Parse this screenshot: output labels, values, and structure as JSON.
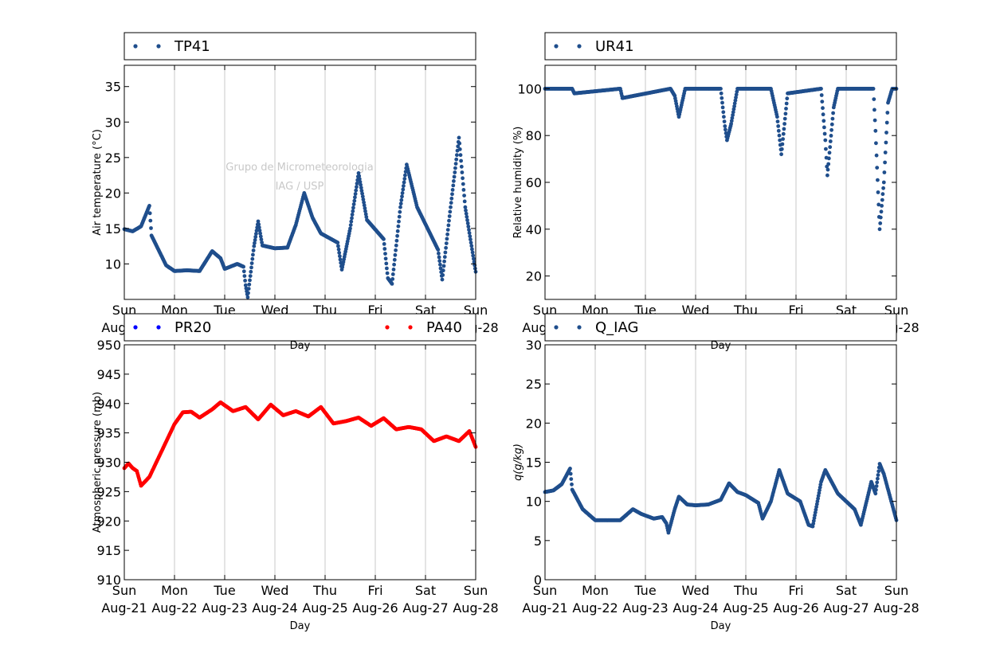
{
  "colors": {
    "series_blue": "#1f4e8c",
    "pr20": "#0000ff",
    "pa40": "#ff0000",
    "grid": "#c8c8c8"
  },
  "watermark": {
    "line1": "Grupo de Micrometeorologia",
    "line2": "IAG / USP"
  },
  "chart_data": [
    {
      "type": "scatter",
      "ylabel": "Air temperature (°C)",
      "xlabel": "Day",
      "x_axis": {
        "type": "date",
        "range": [
          "2016-08-21 00:00",
          "2016-08-28 00:00"
        ]
      },
      "ylim": [
        5,
        38
      ],
      "yticks": [
        10,
        15,
        20,
        25,
        30,
        35
      ],
      "grid": "vertical",
      "legend_position": "top",
      "series": [
        {
          "name": "TP41",
          "color": "#1f4e8c",
          "points": [
            [
              "2016-08-21 00:00",
              14.9
            ],
            [
              "2016-08-21 04:00",
              14.6
            ],
            [
              "2016-08-21 08:00",
              15.3
            ],
            [
              "2016-08-21 12:00",
              18.2
            ],
            [
              "2016-08-21 13:00",
              14.0
            ],
            [
              "2016-08-21 18:00",
              11.0
            ],
            [
              "2016-08-21 20:00",
              9.8
            ],
            [
              "2016-08-22 00:00",
              9.0
            ],
            [
              "2016-08-22 06:00",
              9.1
            ],
            [
              "2016-08-22 12:00",
              9.0
            ],
            [
              "2016-08-22 18:00",
              11.8
            ],
            [
              "2016-08-22 22:00",
              10.8
            ],
            [
              "2016-08-23 00:00",
              9.3
            ],
            [
              "2016-08-23 06:00",
              10.0
            ],
            [
              "2016-08-23 09:00",
              9.6
            ],
            [
              "2016-08-23 10:00",
              7.0
            ],
            [
              "2016-08-23 11:00",
              5.3
            ],
            [
              "2016-08-23 14:00",
              12.5
            ],
            [
              "2016-08-23 16:00",
              16.0
            ],
            [
              "2016-08-23 18:00",
              12.6
            ],
            [
              "2016-08-24 00:00",
              12.2
            ],
            [
              "2016-08-24 06:00",
              12.3
            ],
            [
              "2016-08-24 10:00",
              15.5
            ],
            [
              "2016-08-24 14:00",
              20.0
            ],
            [
              "2016-08-24 18:00",
              16.5
            ],
            [
              "2016-08-24 22:00",
              14.3
            ],
            [
              "2016-08-25 06:00",
              13.0
            ],
            [
              "2016-08-25 08:00",
              9.2
            ],
            [
              "2016-08-25 12:00",
              15.0
            ],
            [
              "2016-08-25 16:00",
              22.8
            ],
            [
              "2016-08-25 20:00",
              16.2
            ],
            [
              "2016-08-26 04:00",
              13.5
            ],
            [
              "2016-08-26 06:00",
              8.0
            ],
            [
              "2016-08-26 08:00",
              7.2
            ],
            [
              "2016-08-26 12:00",
              18.0
            ],
            [
              "2016-08-26 15:00",
              24.0
            ],
            [
              "2016-08-26 20:00",
              18.0
            ],
            [
              "2016-08-27 06:00",
              12.0
            ],
            [
              "2016-08-27 08:00",
              7.8
            ],
            [
              "2016-08-27 12:00",
              18.0
            ],
            [
              "2016-08-27 16:00",
              27.8
            ],
            [
              "2016-08-27 19:00",
              18.0
            ],
            [
              "2016-08-28 00:00",
              8.9
            ]
          ]
        }
      ]
    },
    {
      "type": "scatter",
      "ylabel": "Relative humidity (%)",
      "xlabel": "Day",
      "x_axis": {
        "type": "date",
        "range": [
          "2016-08-21 00:00",
          "2016-08-28 00:00"
        ]
      },
      "ylim": [
        10,
        110
      ],
      "yticks": [
        20,
        40,
        60,
        80,
        100
      ],
      "grid": "vertical",
      "legend_position": "top",
      "series": [
        {
          "name": "UR41",
          "color": "#1f4e8c",
          "points": [
            [
              "2016-08-21 00:00",
              100
            ],
            [
              "2016-08-21 13:00",
              100
            ],
            [
              "2016-08-21 14:00",
              98.0
            ],
            [
              "2016-08-22 12:00",
              100
            ],
            [
              "2016-08-22 13:00",
              96.0
            ],
            [
              "2016-08-23 12:00",
              100
            ],
            [
              "2016-08-23 14:00",
              97.0
            ],
            [
              "2016-08-23 16:00",
              88.0
            ],
            [
              "2016-08-23 18:00",
              96.0
            ],
            [
              "2016-08-23 19:00",
              100
            ],
            [
              "2016-08-24 12:00",
              100
            ],
            [
              "2016-08-24 14:00",
              84.0
            ],
            [
              "2016-08-24 15:00",
              78.0
            ],
            [
              "2016-08-24 17:00",
              85.0
            ],
            [
              "2016-08-24 20:00",
              100
            ],
            [
              "2016-08-25 12:00",
              100
            ],
            [
              "2016-08-25 15:00",
              88.0
            ],
            [
              "2016-08-25 17:00",
              72.0
            ],
            [
              "2016-08-25 20:00",
              98.0
            ],
            [
              "2016-08-26 12:00",
              100
            ],
            [
              "2016-08-26 14:00",
              78.0
            ],
            [
              "2016-08-26 15:00",
              63.0
            ],
            [
              "2016-08-26 18:00",
              92.0
            ],
            [
              "2016-08-26 20:00",
              100
            ],
            [
              "2016-08-27 13:00",
              100
            ],
            [
              "2016-08-27 14:00",
              82.0
            ],
            [
              "2016-08-27 16:00",
              40.0
            ],
            [
              "2016-08-27 18:00",
              60.0
            ],
            [
              "2016-08-27 20:00",
              94.0
            ],
            [
              "2016-08-27 22:00",
              100
            ],
            [
              "2016-08-28 00:00",
              100
            ]
          ]
        }
      ]
    },
    {
      "type": "scatter",
      "ylabel": "Atmospheric pressure (mb)",
      "xlabel": "Day",
      "x_axis": {
        "type": "date",
        "range": [
          "2016-08-21 00:00",
          "2016-08-28 00:00"
        ]
      },
      "ylim": [
        910,
        950
      ],
      "yticks": [
        910,
        915,
        920,
        925,
        930,
        935,
        940,
        945,
        950
      ],
      "grid": "vertical",
      "legend_position": "top",
      "series": [
        {
          "name": "PR20",
          "color": "#0000ff",
          "points": []
        },
        {
          "name": "PA40",
          "color": "#ff0000",
          "points": [
            [
              "2016-08-21 00:00",
              929.0
            ],
            [
              "2016-08-21 02:00",
              929.8
            ],
            [
              "2016-08-21 04:00",
              929.0
            ],
            [
              "2016-08-21 06:00",
              928.5
            ],
            [
              "2016-08-21 08:00",
              926.0
            ],
            [
              "2016-08-21 12:00",
              927.5
            ],
            [
              "2016-08-21 18:00",
              932.0
            ],
            [
              "2016-08-22 00:00",
              936.5
            ],
            [
              "2016-08-22 04:00",
              938.5
            ],
            [
              "2016-08-22 08:00",
              938.6
            ],
            [
              "2016-08-22 12:00",
              937.6
            ],
            [
              "2016-08-22 18:00",
              939.0
            ],
            [
              "2016-08-22 22:00",
              940.2
            ],
            [
              "2016-08-23 04:00",
              938.7
            ],
            [
              "2016-08-23 10:00",
              939.4
            ],
            [
              "2016-08-23 16:00",
              937.3
            ],
            [
              "2016-08-23 22:00",
              939.8
            ],
            [
              "2016-08-24 04:00",
              938.0
            ],
            [
              "2016-08-24 10:00",
              938.7
            ],
            [
              "2016-08-24 16:00",
              937.8
            ],
            [
              "2016-08-24 22:00",
              939.4
            ],
            [
              "2016-08-25 04:00",
              936.6
            ],
            [
              "2016-08-25 10:00",
              937.0
            ],
            [
              "2016-08-25 16:00",
              937.6
            ],
            [
              "2016-08-25 22:00",
              936.2
            ],
            [
              "2016-08-26 04:00",
              937.5
            ],
            [
              "2016-08-26 10:00",
              935.6
            ],
            [
              "2016-08-26 16:00",
              936.0
            ],
            [
              "2016-08-26 22:00",
              935.6
            ],
            [
              "2016-08-27 04:00",
              933.6
            ],
            [
              "2016-08-27 10:00",
              934.4
            ],
            [
              "2016-08-27 16:00",
              933.6
            ],
            [
              "2016-08-27 21:00",
              935.3
            ],
            [
              "2016-08-28 00:00",
              932.6
            ]
          ]
        }
      ]
    },
    {
      "type": "scatter",
      "ylabel": "q(g/kg)",
      "xlabel": "Day",
      "x_axis": {
        "type": "date",
        "range": [
          "2016-08-21 00:00",
          "2016-08-28 00:00"
        ]
      },
      "ylim": [
        0,
        30
      ],
      "yticks": [
        0,
        5,
        10,
        15,
        20,
        25,
        30
      ],
      "grid": "vertical",
      "legend_position": "top",
      "series": [
        {
          "name": "Q_IAG",
          "color": "#1f4e8c",
          "points": [
            [
              "2016-08-21 00:00",
              11.2
            ],
            [
              "2016-08-21 04:00",
              11.4
            ],
            [
              "2016-08-21 08:00",
              12.2
            ],
            [
              "2016-08-21 12:00",
              14.2
            ],
            [
              "2016-08-21 13:00",
              11.5
            ],
            [
              "2016-08-21 18:00",
              9.0
            ],
            [
              "2016-08-22 00:00",
              7.6
            ],
            [
              "2016-08-22 06:00",
              7.6
            ],
            [
              "2016-08-22 12:00",
              7.6
            ],
            [
              "2016-08-22 18:00",
              9.0
            ],
            [
              "2016-08-22 22:00",
              8.4
            ],
            [
              "2016-08-23 04:00",
              7.8
            ],
            [
              "2016-08-23 08:00",
              8.0
            ],
            [
              "2016-08-23 10:00",
              7.2
            ],
            [
              "2016-08-23 11:00",
              6.0
            ],
            [
              "2016-08-23 14:00",
              9.0
            ],
            [
              "2016-08-23 16:00",
              10.6
            ],
            [
              "2016-08-23 20:00",
              9.6
            ],
            [
              "2016-08-24 00:00",
              9.5
            ],
            [
              "2016-08-24 06:00",
              9.6
            ],
            [
              "2016-08-24 12:00",
              10.2
            ],
            [
              "2016-08-24 16:00",
              12.3
            ],
            [
              "2016-08-24 20:00",
              11.2
            ],
            [
              "2016-08-25 00:00",
              10.8
            ],
            [
              "2016-08-25 06:00",
              9.8
            ],
            [
              "2016-08-25 08:00",
              7.8
            ],
            [
              "2016-08-25 12:00",
              10.0
            ],
            [
              "2016-08-25 16:00",
              14.0
            ],
            [
              "2016-08-25 20:00",
              11.0
            ],
            [
              "2016-08-26 02:00",
              10.0
            ],
            [
              "2016-08-26 06:00",
              7.0
            ],
            [
              "2016-08-26 08:00",
              6.8
            ],
            [
              "2016-08-26 12:00",
              12.5
            ],
            [
              "2016-08-26 14:00",
              14.0
            ],
            [
              "2016-08-26 20:00",
              11.0
            ],
            [
              "2016-08-27 04:00",
              9.0
            ],
            [
              "2016-08-27 07:00",
              7.0
            ],
            [
              "2016-08-27 12:00",
              12.5
            ],
            [
              "2016-08-27 14:00",
              11.0
            ],
            [
              "2016-08-27 16:00",
              14.8
            ],
            [
              "2016-08-27 18:00",
              13.5
            ],
            [
              "2016-08-28 00:00",
              7.6
            ]
          ]
        }
      ]
    }
  ],
  "x_ticks": [
    {
      "day": "Sun",
      "date": "Aug-21"
    },
    {
      "day": "Mon",
      "date": "Aug-22"
    },
    {
      "day": "Tue",
      "date": "Aug-23"
    },
    {
      "day": "Wed",
      "date": "Aug-24"
    },
    {
      "day": "Thu",
      "date": "Aug-25"
    },
    {
      "day": "Fri",
      "date": "Aug-26"
    },
    {
      "day": "Sat",
      "date": "Aug-27"
    },
    {
      "day": "Sun",
      "date": "Aug-28"
    }
  ]
}
